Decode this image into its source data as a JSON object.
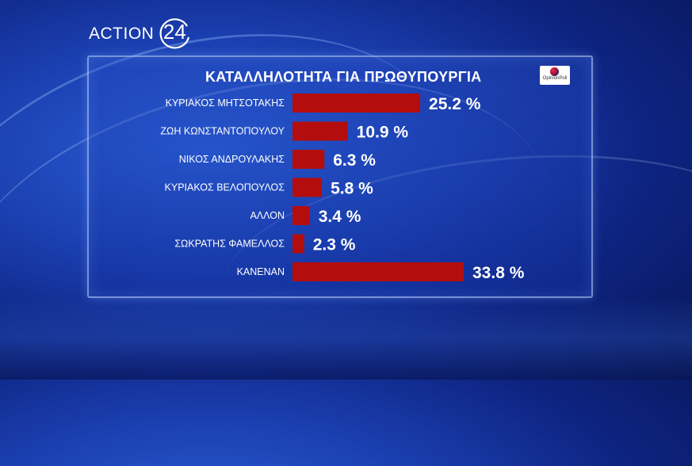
{
  "channel": {
    "logo_text": "ACTION",
    "logo_number": "24"
  },
  "pollster": {
    "name": "OpinionPoll"
  },
  "colors": {
    "bar": "#b40d0d",
    "text": "#ffffff"
  },
  "chart_data": {
    "type": "bar",
    "orientation": "horizontal",
    "title": "ΚΑΤΑΛΛΗΛΟΤΗΤΑ ΓΙΑ ΠΡΩΘΥΠΟΥΡΓΙΑ",
    "categories": [
      "ΚΥΡΙΑΚΟΣ ΜΗΤΣΟΤΑΚΗΣ",
      "ΖΩΗ ΚΩΝΣΤΑΝΤΟΠΟΥΛΟΥ",
      "ΝΙΚΟΣ ΑΝΔΡΟΥΛΑΚΗΣ",
      "ΚΥΡΙΑΚΟΣ ΒΕΛΟΠΟΥΛΟΣ",
      "ΑΛΛΟΝ",
      "ΣΩΚΡΑΤΗΣ ΦΑΜΕΛΛΟΣ",
      "ΚΑΝΕΝΑΝ"
    ],
    "values": [
      25.2,
      10.9,
      6.3,
      5.8,
      3.4,
      2.3,
      33.8
    ],
    "value_labels": [
      "25.2 %",
      "10.9 %",
      "6.3 %",
      "5.8 %",
      "3.4 %",
      "2.3 %",
      "33.8 %"
    ],
    "unit": "%",
    "grid": false,
    "legend": "none"
  }
}
